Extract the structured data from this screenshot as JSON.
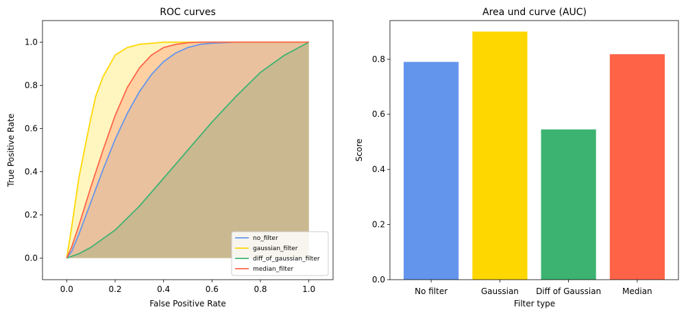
{
  "chart_data": [
    {
      "type": "line",
      "title": "ROC curves",
      "xlabel": "False Positive Rate",
      "ylabel": "True Positive Rate",
      "xlim": [
        -0.1,
        1.1
      ],
      "ylim": [
        -0.1,
        1.1
      ],
      "xticks": [
        "0.0",
        "0.2",
        "0.4",
        "0.6",
        "0.8",
        "1.0"
      ],
      "yticks": [
        "0.0",
        "0.2",
        "0.4",
        "0.6",
        "0.8",
        "1.0"
      ],
      "grid": false,
      "legend_position": "bottom-right",
      "filled_under_curves": true,
      "series": [
        {
          "name": "no_filter",
          "color": "#6495ED",
          "x": [
            0,
            0.02,
            0.05,
            0.1,
            0.15,
            0.2,
            0.25,
            0.3,
            0.35,
            0.4,
            0.45,
            0.5,
            0.55,
            0.6,
            0.7,
            0.8,
            1.0
          ],
          "y": [
            0,
            0.03,
            0.11,
            0.26,
            0.41,
            0.55,
            0.67,
            0.77,
            0.85,
            0.91,
            0.95,
            0.975,
            0.99,
            0.995,
            1.0,
            1.0,
            1.0
          ]
        },
        {
          "name": "gaussian_filter",
          "color": "#FFD700",
          "x": [
            0,
            0.02,
            0.05,
            0.08,
            0.1,
            0.12,
            0.15,
            0.2,
            0.25,
            0.3,
            0.35,
            0.4,
            0.45,
            0.5,
            0.6,
            0.8,
            1.0
          ],
          "y": [
            0,
            0.14,
            0.37,
            0.54,
            0.65,
            0.75,
            0.84,
            0.94,
            0.975,
            0.99,
            0.995,
            1.0,
            1.0,
            1.0,
            1.0,
            1.0,
            1.0
          ]
        },
        {
          "name": "diff_of_gaussian_filter",
          "color": "#3CB371",
          "x": [
            0,
            0.05,
            0.1,
            0.15,
            0.2,
            0.3,
            0.4,
            0.5,
            0.6,
            0.7,
            0.8,
            0.9,
            1.0
          ],
          "y": [
            0,
            0.02,
            0.05,
            0.09,
            0.13,
            0.24,
            0.37,
            0.5,
            0.63,
            0.75,
            0.86,
            0.94,
            1.0
          ]
        },
        {
          "name": "median_filter",
          "color": "#FF6347",
          "x": [
            0,
            0.02,
            0.05,
            0.1,
            0.15,
            0.2,
            0.25,
            0.3,
            0.35,
            0.4,
            0.45,
            0.5,
            0.55,
            0.6,
            0.7,
            0.8,
            1.0
          ],
          "y": [
            0,
            0.05,
            0.15,
            0.33,
            0.5,
            0.66,
            0.79,
            0.88,
            0.94,
            0.975,
            0.99,
            0.997,
            1.0,
            1.0,
            1.0,
            1.0,
            1.0
          ]
        }
      ]
    },
    {
      "type": "bar",
      "title": "Area und curve (AUC)",
      "xlabel": "Filter type",
      "ylabel": "Score",
      "ylim": [
        0,
        0.94
      ],
      "yticks": [
        "0.0",
        "0.2",
        "0.4",
        "0.6",
        "0.8"
      ],
      "grid": false,
      "categories": [
        "No filter",
        "Gaussian",
        "Diff of Gaussian",
        "Median"
      ],
      "values": [
        0.79,
        0.9,
        0.545,
        0.818
      ],
      "colors": [
        "#6495ED",
        "#FFD700",
        "#3CB371",
        "#FF6347"
      ]
    }
  ]
}
